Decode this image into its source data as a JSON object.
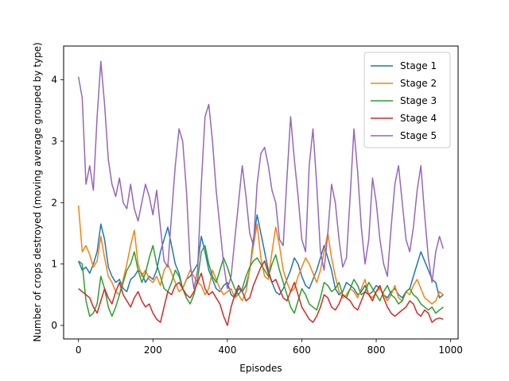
{
  "chart_data": {
    "type": "line",
    "title": "",
    "xlabel": "Episodes",
    "ylabel": "Number of crops destroyed (moving average grouped by type)",
    "xlim": [
      -40,
      1020
    ],
    "ylim": [
      -0.22,
      4.55
    ],
    "xticks": [
      0,
      200,
      400,
      600,
      800,
      1000
    ],
    "yticks": [
      0,
      1,
      2,
      3,
      4
    ],
    "legend_position": "top-right",
    "grid": false,
    "series": [
      {
        "name": "Stage 1",
        "color": "#1f77b4",
        "x": [
          0,
          10,
          20,
          30,
          40,
          50,
          60,
          70,
          80,
          90,
          100,
          110,
          120,
          130,
          140,
          150,
          160,
          170,
          180,
          190,
          200,
          210,
          220,
          230,
          240,
          250,
          260,
          270,
          280,
          290,
          300,
          310,
          320,
          330,
          340,
          350,
          360,
          370,
          380,
          390,
          400,
          410,
          420,
          430,
          440,
          450,
          460,
          470,
          480,
          490,
          500,
          510,
          520,
          530,
          540,
          550,
          560,
          570,
          580,
          590,
          600,
          610,
          620,
          630,
          640,
          650,
          660,
          670,
          680,
          690,
          700,
          710,
          720,
          730,
          740,
          750,
          760,
          770,
          780,
          790,
          800,
          810,
          820,
          830,
          840,
          850,
          860,
          870,
          880,
          890,
          900,
          910,
          920,
          930,
          940,
          950,
          960,
          970,
          980
        ],
        "y": [
          1.05,
          0.9,
          0.95,
          0.85,
          1.0,
          1.2,
          1.65,
          1.4,
          0.95,
          0.8,
          0.7,
          0.75,
          0.6,
          0.55,
          0.75,
          0.8,
          0.9,
          0.85,
          0.7,
          0.8,
          0.75,
          0.9,
          1.2,
          1.4,
          1.6,
          1.3,
          1.0,
          0.85,
          0.6,
          0.75,
          0.8,
          0.9,
          1.0,
          1.45,
          1.2,
          0.9,
          0.75,
          0.6,
          0.55,
          0.65,
          0.7,
          0.5,
          0.45,
          0.6,
          0.55,
          0.65,
          0.9,
          1.4,
          1.8,
          1.5,
          1.2,
          0.9,
          0.7,
          0.55,
          0.5,
          0.6,
          0.75,
          0.9,
          1.1,
          1.0,
          0.8,
          0.65,
          0.6,
          0.75,
          0.9,
          1.1,
          1.3,
          1.1,
          0.9,
          0.6,
          0.5,
          0.55,
          0.7,
          0.65,
          0.6,
          0.5,
          0.55,
          0.65,
          0.5,
          0.55,
          0.65,
          0.6,
          0.5,
          0.45,
          0.55,
          0.6,
          0.5,
          0.45,
          0.55,
          0.6,
          0.8,
          1.0,
          1.2,
          1.05,
          0.9,
          0.75,
          0.7,
          0.45,
          0.5
        ]
      },
      {
        "name": "Stage 2",
        "color": "#ff7f0e",
        "x": [
          0,
          10,
          20,
          30,
          40,
          50,
          60,
          70,
          80,
          90,
          100,
          110,
          120,
          130,
          140,
          150,
          160,
          170,
          180,
          190,
          200,
          210,
          220,
          230,
          240,
          250,
          260,
          270,
          280,
          290,
          300,
          310,
          320,
          330,
          340,
          350,
          360,
          370,
          380,
          390,
          400,
          410,
          420,
          430,
          440,
          450,
          460,
          470,
          480,
          490,
          500,
          510,
          520,
          530,
          540,
          550,
          560,
          570,
          580,
          590,
          600,
          610,
          620,
          630,
          640,
          650,
          660,
          670,
          680,
          690,
          700,
          710,
          720,
          730,
          740,
          750,
          760,
          770,
          780,
          790,
          800,
          810,
          820,
          830,
          840,
          850,
          860,
          870,
          880,
          890,
          900,
          910,
          920,
          930,
          940,
          950,
          960,
          970,
          980
        ],
        "y": [
          1.95,
          1.2,
          1.3,
          1.15,
          0.95,
          1.05,
          1.45,
          1.1,
          0.8,
          0.7,
          0.55,
          0.5,
          0.75,
          1.0,
          1.3,
          1.55,
          1.0,
          0.8,
          0.9,
          0.75,
          0.7,
          0.8,
          0.65,
          0.9,
          1.0,
          0.85,
          0.7,
          0.55,
          0.6,
          0.75,
          0.9,
          0.8,
          0.7,
          0.65,
          0.5,
          0.6,
          0.9,
          0.75,
          0.6,
          0.5,
          0.55,
          0.6,
          0.45,
          0.5,
          0.4,
          0.55,
          0.9,
          1.3,
          1.65,
          1.1,
          0.8,
          0.75,
          1.2,
          1.6,
          1.3,
          0.9,
          0.7,
          0.55,
          0.6,
          0.8,
          0.95,
          1.1,
          1.0,
          0.85,
          0.7,
          0.9,
          1.2,
          1.5,
          1.1,
          0.8,
          0.55,
          0.45,
          0.5,
          0.6,
          0.55,
          0.45,
          0.6,
          0.75,
          0.5,
          0.45,
          0.55,
          0.6,
          0.5,
          0.4,
          0.5,
          0.65,
          0.45,
          0.4,
          0.55,
          0.5,
          0.65,
          0.75,
          0.6,
          0.45,
          0.4,
          0.35,
          0.4,
          0.55,
          0.5
        ]
      },
      {
        "name": "Stage 3",
        "color": "#2ca02c",
        "x": [
          0,
          10,
          20,
          30,
          40,
          50,
          60,
          70,
          80,
          90,
          100,
          110,
          120,
          130,
          140,
          150,
          160,
          170,
          180,
          190,
          200,
          210,
          220,
          230,
          240,
          250,
          260,
          270,
          280,
          290,
          300,
          310,
          320,
          330,
          340,
          350,
          360,
          370,
          380,
          390,
          400,
          410,
          420,
          430,
          440,
          450,
          460,
          470,
          480,
          490,
          500,
          510,
          520,
          530,
          540,
          550,
          560,
          570,
          580,
          590,
          600,
          610,
          620,
          630,
          640,
          650,
          660,
          670,
          680,
          690,
          700,
          710,
          720,
          730,
          740,
          750,
          760,
          770,
          780,
          790,
          800,
          810,
          820,
          830,
          840,
          850,
          860,
          870,
          880,
          890,
          900,
          910,
          920,
          930,
          940,
          950,
          960,
          970,
          980
        ],
        "y": [
          1.05,
          1.0,
          0.4,
          0.15,
          0.2,
          0.35,
          0.8,
          0.6,
          0.3,
          0.15,
          0.3,
          0.5,
          0.7,
          0.9,
          1.0,
          1.2,
          0.9,
          0.7,
          0.85,
          1.1,
          1.3,
          1.0,
          0.8,
          0.6,
          0.55,
          0.7,
          0.9,
          0.8,
          0.6,
          0.45,
          0.35,
          0.5,
          0.75,
          1.2,
          1.3,
          1.0,
          0.8,
          0.7,
          0.9,
          1.1,
          0.95,
          0.75,
          0.6,
          0.5,
          0.6,
          0.8,
          0.95,
          1.05,
          1.1,
          1.0,
          0.9,
          0.8,
          1.0,
          1.15,
          0.9,
          0.7,
          0.5,
          0.3,
          0.2,
          0.4,
          0.6,
          0.5,
          0.35,
          0.3,
          0.25,
          0.45,
          0.7,
          0.65,
          0.55,
          0.6,
          0.7,
          0.5,
          0.45,
          0.6,
          0.75,
          0.65,
          0.5,
          0.55,
          0.7,
          0.6,
          0.5,
          0.4,
          0.55,
          0.65,
          0.5,
          0.45,
          0.35,
          0.4,
          0.55,
          0.6,
          0.5,
          0.45,
          0.35,
          0.3,
          0.25,
          0.3,
          0.2,
          0.25,
          0.3
        ]
      },
      {
        "name": "Stage 4",
        "color": "#d62728",
        "x": [
          0,
          10,
          20,
          30,
          40,
          50,
          60,
          70,
          80,
          90,
          100,
          110,
          120,
          130,
          140,
          150,
          160,
          170,
          180,
          190,
          200,
          210,
          220,
          230,
          240,
          250,
          260,
          270,
          280,
          290,
          300,
          310,
          320,
          330,
          340,
          350,
          360,
          370,
          380,
          390,
          400,
          410,
          420,
          430,
          440,
          450,
          460,
          470,
          480,
          490,
          500,
          510,
          520,
          530,
          540,
          550,
          560,
          570,
          580,
          590,
          600,
          610,
          620,
          630,
          640,
          650,
          660,
          670,
          680,
          690,
          700,
          710,
          720,
          730,
          740,
          750,
          760,
          770,
          780,
          790,
          800,
          810,
          820,
          830,
          840,
          850,
          860,
          870,
          880,
          890,
          900,
          910,
          920,
          930,
          940,
          950,
          960,
          970,
          980
        ],
        "y": [
          0.6,
          0.55,
          0.5,
          0.45,
          0.3,
          0.2,
          0.4,
          0.6,
          0.45,
          0.35,
          0.55,
          0.7,
          0.5,
          0.4,
          0.3,
          0.45,
          0.55,
          0.4,
          0.3,
          0.35,
          0.2,
          0.1,
          0.05,
          0.3,
          0.55,
          0.5,
          0.65,
          0.7,
          0.6,
          0.5,
          0.45,
          0.55,
          0.7,
          0.85,
          0.6,
          0.5,
          0.55,
          0.45,
          0.35,
          0.15,
          0.0,
          0.3,
          0.5,
          0.65,
          0.55,
          0.4,
          0.45,
          0.65,
          0.8,
          0.95,
          1.05,
          0.85,
          0.7,
          0.75,
          0.6,
          0.45,
          0.4,
          0.55,
          0.7,
          0.5,
          0.3,
          0.2,
          0.1,
          0.05,
          0.15,
          0.3,
          0.5,
          0.45,
          0.3,
          0.25,
          0.35,
          0.5,
          0.45,
          0.4,
          0.3,
          0.25,
          0.4,
          0.55,
          0.5,
          0.4,
          0.55,
          0.65,
          0.45,
          0.3,
          0.2,
          0.15,
          0.2,
          0.25,
          0.3,
          0.4,
          0.35,
          0.2,
          0.15,
          0.25,
          0.2,
          0.05,
          0.1,
          0.12,
          0.1
        ]
      },
      {
        "name": "Stage 5",
        "color": "#9467bd",
        "x": [
          0,
          10,
          20,
          30,
          40,
          50,
          60,
          70,
          80,
          90,
          100,
          110,
          120,
          130,
          140,
          150,
          160,
          170,
          180,
          190,
          200,
          210,
          220,
          230,
          240,
          250,
          260,
          270,
          280,
          290,
          300,
          310,
          320,
          330,
          340,
          350,
          360,
          370,
          380,
          390,
          400,
          410,
          420,
          430,
          440,
          450,
          460,
          470,
          480,
          490,
          500,
          510,
          520,
          530,
          540,
          550,
          560,
          570,
          580,
          590,
          600,
          610,
          620,
          630,
          640,
          650,
          660,
          670,
          680,
          690,
          700,
          710,
          720,
          730,
          740,
          750,
          760,
          770,
          780,
          790,
          800,
          810,
          820,
          830,
          840,
          850,
          860,
          870,
          880,
          890,
          900,
          910,
          920,
          930,
          940,
          950,
          960,
          970,
          980
        ],
        "y": [
          4.05,
          3.7,
          2.3,
          2.6,
          2.2,
          3.4,
          4.3,
          3.6,
          2.7,
          2.3,
          2.1,
          2.4,
          2.0,
          1.9,
          2.3,
          1.9,
          1.7,
          2.0,
          2.3,
          2.1,
          1.8,
          2.2,
          1.6,
          1.05,
          0.95,
          1.8,
          2.6,
          3.2,
          3.0,
          2.2,
          1.0,
          0.6,
          0.9,
          2.3,
          3.4,
          3.6,
          3.0,
          2.2,
          1.6,
          1.0,
          0.6,
          0.8,
          1.4,
          2.0,
          2.6,
          2.1,
          1.5,
          1.3,
          2.3,
          2.8,
          2.9,
          2.6,
          2.2,
          2.0,
          1.4,
          1.3,
          2.4,
          3.4,
          2.7,
          2.1,
          1.4,
          1.2,
          2.6,
          3.2,
          2.3,
          1.2,
          0.9,
          1.5,
          2.3,
          2.0,
          1.4,
          0.95,
          1.1,
          2.1,
          3.2,
          2.5,
          1.6,
          1.0,
          1.4,
          2.4,
          2.0,
          1.4,
          1.0,
          0.8,
          1.6,
          2.3,
          2.6,
          2.0,
          1.4,
          1.2,
          1.6,
          2.2,
          2.6,
          1.8,
          1.1,
          0.7,
          1.2,
          1.45,
          1.25
        ]
      }
    ]
  }
}
